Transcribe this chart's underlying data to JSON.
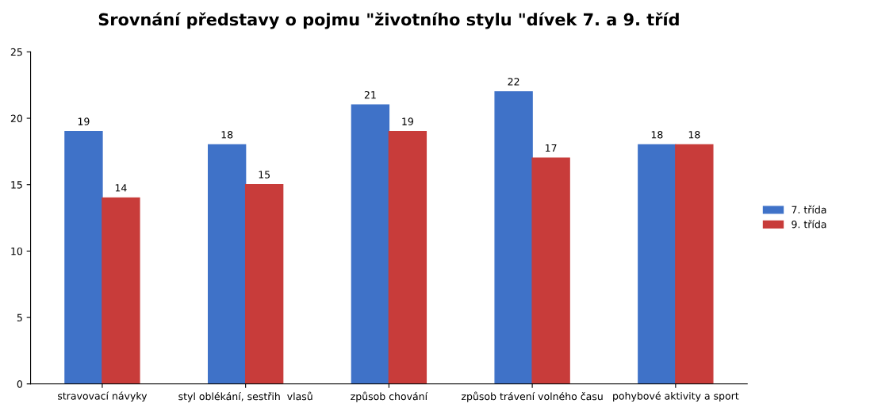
{
  "chart_data": {
    "type": "bar",
    "title": "Srovnání představy o pojmu \"životního stylu \"dívek 7. a 9. tříd",
    "categories": [
      "stravovací návyky",
      "styl oblékání, sestřih  vlasů",
      "způsob chování",
      "způsob trávení volného času",
      "pohybové aktivity a sport"
    ],
    "series": [
      {
        "name": "7. třída",
        "color": "#3f72c8",
        "values": [
          19,
          18,
          21,
          22,
          18
        ]
      },
      {
        "name": "9. třída",
        "color": "#c83c3a",
        "values": [
          14,
          15,
          19,
          17,
          18
        ]
      }
    ],
    "ylim": [
      0,
      25
    ],
    "yticks": [
      0,
      5,
      10,
      15,
      20,
      25
    ],
    "data_labels": true,
    "grid": false,
    "legend": "right"
  }
}
